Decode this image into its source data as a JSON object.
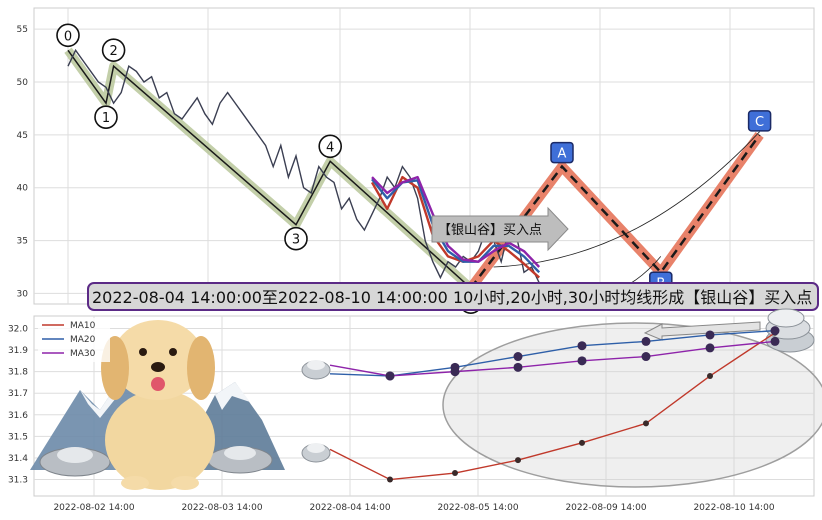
{
  "chart_data": [
    {
      "type": "line",
      "panel": "upper",
      "yticks": [
        30,
        35,
        40,
        45,
        50,
        55
      ],
      "ylim": [
        29,
        57
      ],
      "grid": true,
      "price_series": [
        [
          0,
          51.5
        ],
        [
          2,
          53
        ],
        [
          4,
          52
        ],
        [
          6,
          51
        ],
        [
          8,
          50
        ],
        [
          10,
          49.5
        ],
        [
          12,
          48
        ],
        [
          14,
          49
        ],
        [
          16,
          51.5
        ],
        [
          18,
          51
        ],
        [
          20,
          50
        ],
        [
          22,
          50.5
        ],
        [
          24,
          48.5
        ],
        [
          26,
          49
        ],
        [
          28,
          47
        ],
        [
          30,
          46.5
        ],
        [
          32,
          47.5
        ],
        [
          34,
          48.5
        ],
        [
          36,
          47
        ],
        [
          38,
          46
        ],
        [
          40,
          48
        ],
        [
          42,
          49
        ],
        [
          44,
          48
        ],
        [
          46,
          47
        ],
        [
          48,
          46
        ],
        [
          50,
          45
        ],
        [
          52,
          44
        ],
        [
          54,
          42
        ],
        [
          56,
          44
        ],
        [
          58,
          41
        ],
        [
          60,
          43
        ],
        [
          62,
          40
        ],
        [
          64,
          39.5
        ],
        [
          66,
          42
        ],
        [
          68,
          41
        ],
        [
          70,
          40.5
        ],
        [
          72,
          38
        ],
        [
          74,
          39
        ],
        [
          76,
          37
        ],
        [
          78,
          36
        ],
        [
          80,
          37.5
        ],
        [
          82,
          39
        ],
        [
          84,
          41
        ],
        [
          86,
          40
        ],
        [
          88,
          42
        ],
        [
          90,
          41
        ],
        [
          92,
          39
        ],
        [
          94,
          35
        ],
        [
          96,
          33
        ],
        [
          98,
          31.5
        ],
        [
          100,
          33
        ],
        [
          102,
          32.5
        ],
        [
          104,
          33.5
        ],
        [
          106,
          33
        ],
        [
          108,
          34
        ],
        [
          110,
          36
        ],
        [
          112,
          35
        ],
        [
          114,
          33
        ],
        [
          116,
          36
        ],
        [
          118,
          35.5
        ],
        [
          120,
          32
        ],
        [
          122,
          32.5
        ],
        [
          124,
          31
        ]
      ],
      "ma_series": [
        {
          "name": "MA10",
          "color": "#c0392b",
          "points": [
            [
              80,
              40.5
            ],
            [
              84,
              38
            ],
            [
              88,
              41
            ],
            [
              92,
              40
            ],
            [
              96,
              35.5
            ],
            [
              100,
              33.5
            ],
            [
              104,
              33
            ],
            [
              108,
              33.5
            ],
            [
              112,
              35
            ],
            [
              116,
              34
            ],
            [
              120,
              32.8
            ],
            [
              124,
              31.5
            ]
          ]
        },
        {
          "name": "MA20",
          "color": "#2e5fa8",
          "points": [
            [
              80,
              40.8
            ],
            [
              84,
              39
            ],
            [
              88,
              40.5
            ],
            [
              92,
              40.7
            ],
            [
              96,
              36.5
            ],
            [
              100,
              34
            ],
            [
              104,
              33
            ],
            [
              108,
              33
            ],
            [
              112,
              34.5
            ],
            [
              116,
              34.5
            ],
            [
              120,
              33.5
            ],
            [
              124,
              32
            ]
          ]
        },
        {
          "name": "MA30",
          "color": "#8e24aa",
          "points": [
            [
              80,
              41
            ],
            [
              84,
              39.5
            ],
            [
              88,
              40.5
            ],
            [
              92,
              41
            ],
            [
              96,
              37.5
            ],
            [
              100,
              34.5
            ],
            [
              104,
              33.2
            ],
            [
              108,
              33
            ],
            [
              112,
              34
            ],
            [
              116,
              34.8
            ],
            [
              120,
              34
            ],
            [
              124,
              32.5
            ]
          ]
        }
      ],
      "wave_points": [
        {
          "label": "0",
          "x": 0,
          "y": 53
        },
        {
          "label": "1",
          "x": 10,
          "y": 48
        },
        {
          "label": "2",
          "x": 12,
          "y": 51.5
        },
        {
          "label": "3",
          "x": 60,
          "y": 36.5
        },
        {
          "label": "4",
          "x": 69,
          "y": 42.5
        },
        {
          "label": "5",
          "x": 106,
          "y": 30.5
        }
      ],
      "projection_points": [
        {
          "label": "",
          "x": 106,
          "y": 30.5
        },
        {
          "label": "A",
          "x": 130,
          "y": 42
        },
        {
          "label": "B",
          "x": 156,
          "y": 32
        },
        {
          "label": "C",
          "x": 182,
          "y": 45
        }
      ],
      "callout_text": "【银山谷】买入点",
      "title": "2022-08-04 14:00:00至2022-08-10 14:00:00 10小时,20小时,30小时均线形成【银山谷】买入点"
    },
    {
      "type": "line",
      "panel": "lower",
      "ylim": [
        31.27,
        32.03
      ],
      "yticks": [
        31.3,
        31.4,
        31.5,
        31.6,
        31.7,
        31.8,
        31.9,
        32.0
      ],
      "ytick_labels": [
        "31.3",
        "31.4",
        "31.5",
        "31.6",
        "31.7",
        "31.8",
        "31.9",
        "32.0"
      ],
      "xticks": [
        "2022-08-02 14:00",
        "2022-08-03 14:00",
        "2022-08-04 14:00",
        "2022-08-05 14:00",
        "2022-08-09 14:00",
        "2022-08-10 14:00"
      ],
      "legend_position": "top-left",
      "x": [
        0,
        1,
        2,
        3,
        4,
        5,
        6,
        7,
        8
      ],
      "series": [
        {
          "name": "MA10",
          "color": "#c0392b",
          "values": [
            31.44,
            31.3,
            31.33,
            31.39,
            31.47,
            31.56,
            31.78,
            31.98,
            null
          ]
        },
        {
          "name": "MA20",
          "color": "#2e5fa8",
          "values": [
            31.79,
            31.78,
            31.82,
            31.87,
            31.92,
            31.94,
            31.97,
            31.99,
            null
          ]
        },
        {
          "name": "MA30",
          "color": "#8e24aa",
          "values": [
            31.83,
            31.78,
            31.8,
            31.82,
            31.85,
            31.87,
            31.91,
            31.94,
            null
          ]
        }
      ]
    }
  ]
}
